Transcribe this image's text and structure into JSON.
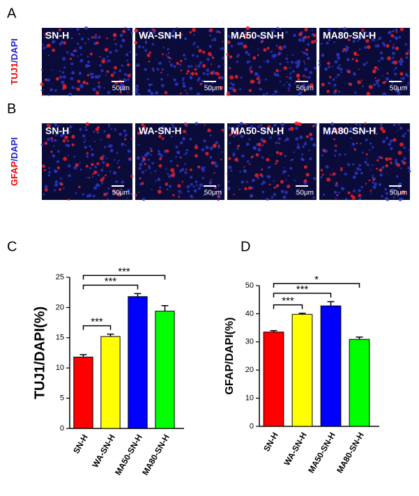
{
  "panels": [
    {
      "letter": "A",
      "stain": [
        "TUJ1",
        "/DAPI"
      ],
      "images": [
        {
          "label": "SN-H",
          "scale": "50μm"
        },
        {
          "label": "WA-SN-H",
          "scale": "50μm"
        },
        {
          "label": "MA50-SN-H",
          "scale": "50μm"
        },
        {
          "label": "MA80-SN-H",
          "scale": "50μm"
        }
      ]
    },
    {
      "letter": "B",
      "stain": [
        "GFAP",
        "/DAPI"
      ],
      "images": [
        {
          "label": "SN-H",
          "scale": "50μm"
        },
        {
          "label": "WA-SN-H",
          "scale": "50μm"
        },
        {
          "label": "MA50-SN-H",
          "scale": "50μm"
        },
        {
          "label": "MA80-SN-H",
          "scale": "50μm"
        }
      ]
    }
  ],
  "chart_data": [
    {
      "type": "bar",
      "letter": "C",
      "ylabel": "TUJ1/DAPI(%)",
      "categories": [
        "SN-H",
        "WA-SN-H",
        "MA50-SN-H",
        "MA80-SN-H"
      ],
      "values": [
        11.8,
        15.2,
        21.8,
        19.4
      ],
      "errors": [
        0.4,
        0.4,
        0.5,
        0.9
      ],
      "colors": [
        "#ff0000",
        "#ffff00",
        "#0000ff",
        "#00ff00"
      ],
      "ylim": [
        0,
        25
      ],
      "yticks": [
        0,
        5,
        10,
        15,
        20,
        25
      ],
      "annotations": [
        {
          "label": "***",
          "from": 0,
          "to": 1
        },
        {
          "label": "***",
          "from": 0,
          "to": 2
        },
        {
          "label": "***",
          "from": 0,
          "to": 3
        }
      ]
    },
    {
      "type": "bar",
      "letter": "D",
      "ylabel": "GFAP/DAPI(%)",
      "categories": [
        "SN-H",
        "WA-SN-H",
        "MA50-SN-H",
        "MA80-SN-H"
      ],
      "values": [
        33.5,
        39.8,
        42.8,
        30.9
      ],
      "errors": [
        0.5,
        0.4,
        1.5,
        0.8
      ],
      "colors": [
        "#ff0000",
        "#ffff00",
        "#0000ff",
        "#00ff00"
      ],
      "ylim": [
        0,
        50
      ],
      "yticks": [
        0,
        10,
        20,
        30,
        40,
        50
      ],
      "annotations": [
        {
          "label": "***",
          "from": 0,
          "to": 1
        },
        {
          "label": "***",
          "from": 0,
          "to": 2
        },
        {
          "label": "*",
          "from": 0,
          "to": 3
        }
      ]
    }
  ]
}
